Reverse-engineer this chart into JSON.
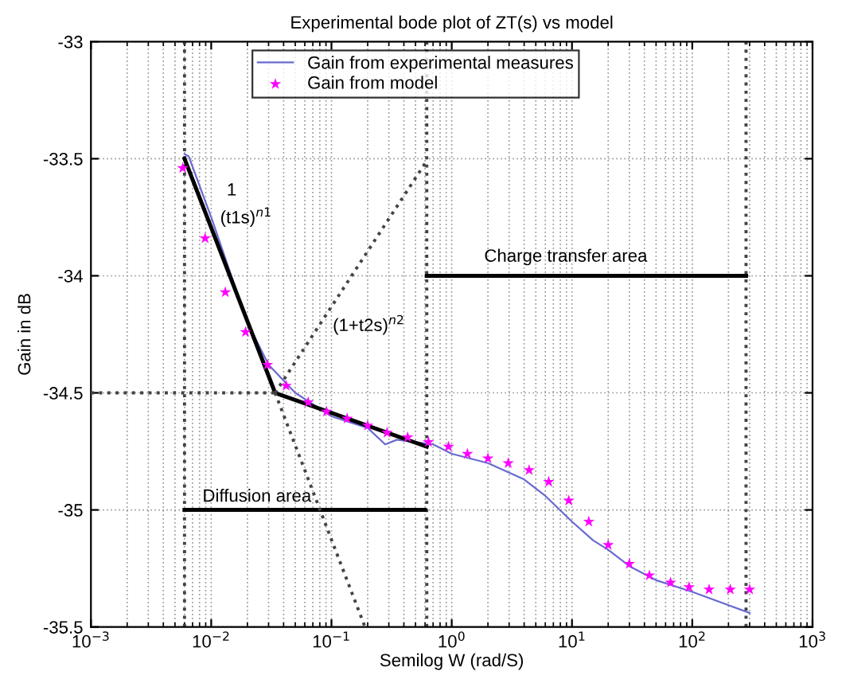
{
  "chart_data": {
    "type": "line",
    "title": "Experimental bode plot of ZT(s) vs model",
    "xlabel": "Semilog W (rad/S)",
    "ylabel": "Gain in dB",
    "log": "x",
    "grid": true,
    "legend": "top",
    "xlim": [
      0.001,
      1000
    ],
    "ylim": [
      -35.5,
      -33
    ],
    "xticks": [
      {
        "value": 0.001,
        "label": "10$^{−3}$"
      },
      {
        "value": 0.01,
        "label": "10$^{−2}$"
      },
      {
        "value": 0.1,
        "label": "10$^{−1}$"
      },
      {
        "value": 1,
        "label": "10$^{0}$"
      },
      {
        "value": 10,
        "label": "10$^{1}$"
      },
      {
        "value": 100,
        "label": "10$^{2}$"
      },
      {
        "value": 1000,
        "label": "10$^{3}$"
      }
    ],
    "yticks": [
      -35.5,
      -35,
      -34.5,
      -34,
      -33.5,
      -33
    ],
    "series": [
      {
        "name": "Gain from experimental measures",
        "type": "line",
        "color": "#6a6ad0",
        "line_style": "solid",
        "marker": "none",
        "x": [
          0.006,
          0.0065,
          0.01,
          0.02,
          0.03,
          0.05,
          0.1,
          0.2,
          0.28,
          0.35,
          0.5,
          0.7,
          1,
          2,
          4,
          6,
          10,
          15,
          20,
          30,
          50,
          100,
          300
        ],
        "values": [
          -33.48,
          -33.49,
          -33.75,
          -34.2,
          -34.38,
          -34.5,
          -34.6,
          -34.65,
          -34.72,
          -34.7,
          -34.71,
          -34.72,
          -34.76,
          -34.8,
          -34.87,
          -34.94,
          -35.05,
          -35.13,
          -35.17,
          -35.24,
          -35.3,
          -35.35,
          -35.44
        ]
      },
      {
        "name": "Gain from model",
        "type": "scatter",
        "color": "#ff00ff",
        "marker": "star",
        "x": [
          0.0058,
          0.0089,
          0.0131,
          0.0193,
          0.0294,
          0.042,
          0.064,
          0.091,
          0.135,
          0.2,
          0.29,
          0.43,
          0.64,
          0.94,
          1.35,
          2,
          2.95,
          4.4,
          6.4,
          9.4,
          13.8,
          20,
          30,
          44,
          66,
          94,
          138,
          207,
          300
        ],
        "values": [
          -33.54,
          -33.84,
          -34.07,
          -34.24,
          -34.38,
          -34.47,
          -34.54,
          -34.58,
          -34.61,
          -34.64,
          -34.67,
          -34.69,
          -34.71,
          -34.73,
          -34.76,
          -34.78,
          -34.8,
          -34.83,
          -34.88,
          -34.96,
          -35.05,
          -35.15,
          -35.23,
          -35.28,
          -35.31,
          -35.33,
          -35.34,
          -35.34,
          -35.34
        ]
      },
      {
        "color": "#000000",
        "line_style": "solid",
        "marker": "none",
        "x": [
          0.006,
          0.034,
          0.62
        ],
        "values": [
          -33.5,
          -34.5,
          -34.73
        ]
      },
      {
        "color": "#000000",
        "line_style": "solid",
        "marker": "none",
        "x": [
          0.006,
          0.6
        ],
        "values": [
          -35,
          -35
        ]
      },
      {
        "color": "#000000",
        "line_style": "solid",
        "marker": "none",
        "x": [
          0.62,
          280
        ],
        "values": [
          -34,
          -34
        ]
      },
      {
        "color": "#444444",
        "line_style": "dotted",
        "marker": "none",
        "x": [
          0.034,
          0.6
        ],
        "values": [
          -34.5,
          -33.52
        ]
      },
      {
        "color": "#444444",
        "line_style": "dotted",
        "marker": "none",
        "x": [
          0.034,
          0.19
        ],
        "values": [
          -34.5,
          -35.5
        ]
      },
      {
        "color": "#444444",
        "line_style": "dotted",
        "marker": "none",
        "x": [
          0.001,
          0.034
        ],
        "values": [
          -34.5,
          -34.5
        ]
      }
    ],
    "ref_lines": [
      {
        "axis": "x",
        "value": 0.006,
        "color": "#444444",
        "line_style": "dotted"
      },
      {
        "axis": "x",
        "value": 0.62,
        "color": "#444444",
        "line_style": "dotted"
      },
      {
        "axis": "x",
        "value": 280,
        "color": "#444444",
        "line_style": "dotted"
      }
    ],
    "annotations": [
      "1",
      "(t1s)$^{n1}$",
      "(1+t2s)$^{n2}$",
      "Charge transfer area",
      "Diffusion area"
    ]
  }
}
